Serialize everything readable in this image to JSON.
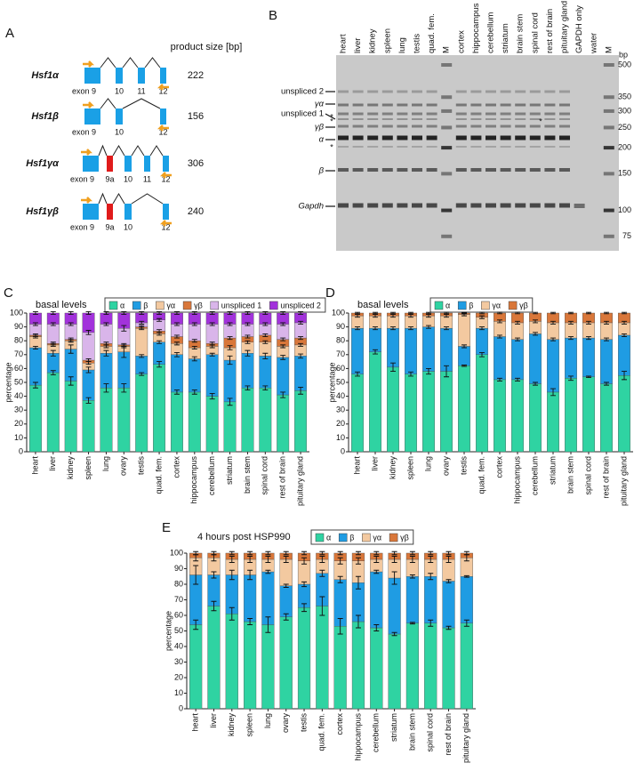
{
  "panel_labels": [
    "A",
    "B",
    "C",
    "D",
    "E"
  ],
  "gene_diagram": {
    "header": "product size [bp]",
    "isoforms": [
      {
        "name": "Hsf1α",
        "exons": [
          "exon 9",
          "10",
          "11",
          "12"
        ],
        "size": 222
      },
      {
        "name": "Hsf1β",
        "exons": [
          "exon 9",
          "10",
          "12"
        ],
        "size": 156
      },
      {
        "name": "Hsf1γα",
        "exons": [
          "exon 9",
          "9a",
          "10",
          "11",
          "12"
        ],
        "size": 306
      },
      {
        "name": "Hsf1γβ",
        "exons": [
          "exon 9",
          "9a",
          "10",
          "12"
        ],
        "size": 240
      }
    ]
  },
  "gel": {
    "lanes": [
      "heart",
      "liver",
      "kidney",
      "spleen",
      "lung",
      "testis",
      "quad. fem.",
      "M",
      "cortex",
      "hippocampus",
      "cerebellum",
      "striatum",
      "brain stem",
      "spinal cord",
      "rest of brain",
      "pituitary gland",
      "GAPDH only",
      "water",
      "M"
    ],
    "band_labels": [
      "unspliced 2",
      "γα",
      "unspliced 1",
      "γβ",
      "α",
      "β",
      "Gapdh"
    ],
    "asterisks": [
      "*",
      "*",
      "*",
      "*"
    ],
    "bp_label": "bp",
    "ladder": [
      500,
      350,
      300,
      250,
      200,
      150,
      100,
      75
    ]
  },
  "chart_data": [
    {
      "type": "bar",
      "stacked": true,
      "title": "basal levels",
      "ylabel": "percentage",
      "categories": [
        "heart",
        "liver",
        "kidney",
        "spleen",
        "lung",
        "ovary",
        "testis",
        "quad. fem.",
        "cortex",
        "hippocampus",
        "cerebellum",
        "striatum",
        "brain stem",
        "spinal cord",
        "rest of brain",
        "pituitary gland"
      ],
      "series": [
        {
          "name": "α",
          "color": "#2fd3a2",
          "values": [
            48,
            57,
            51,
            37,
            46,
            46,
            56,
            63,
            43,
            43,
            40,
            36,
            46,
            46,
            41,
            44
          ],
          "errors": [
            2,
            1.5,
            3,
            2,
            3,
            3,
            1,
            2,
            1.5,
            1.5,
            2,
            2.5,
            1.5,
            1.5,
            2,
            2.5
          ]
        },
        {
          "name": "β",
          "color": "#1f9ce3",
          "values": [
            27,
            14,
            23,
            22,
            25,
            26,
            13,
            16,
            27,
            24,
            30,
            30,
            25,
            23,
            27,
            25
          ],
          "errors": [
            1,
            2,
            3,
            2,
            2,
            4,
            1,
            1,
            1.5,
            1.5,
            1,
            3,
            2,
            2,
            1.5,
            1.5
          ]
        },
        {
          "name": "γα",
          "color": "#f3c9a0",
          "values": [
            8,
            6,
            6,
            5,
            5,
            4,
            20,
            6,
            8,
            8,
            6,
            9,
            8,
            10,
            8,
            8
          ],
          "errors": [
            1,
            1,
            1,
            1,
            1,
            1,
            1,
            1,
            1,
            1,
            1,
            1.5,
            1,
            1,
            1,
            1
          ]
        },
        {
          "name": "γβ",
          "color": "#d9773a",
          "values": [
            1,
            1,
            1,
            2,
            2,
            1,
            1,
            2,
            5,
            5,
            2,
            7,
            4,
            5,
            5,
            5
          ],
          "errors": [
            1,
            1,
            1,
            1,
            1,
            1,
            1,
            1,
            1,
            1,
            1,
            1,
            1,
            1,
            1,
            1
          ]
        },
        {
          "name": "unspliced 1",
          "color": "#d9b5ea",
          "values": [
            8,
            14,
            11,
            20,
            14,
            12,
            3,
            8,
            9,
            12,
            14,
            10,
            9,
            8,
            11,
            11
          ],
          "errors": [
            1,
            1,
            1,
            1.5,
            1,
            2,
            1,
            1,
            1,
            1,
            1,
            1,
            1,
            1,
            1,
            1
          ]
        },
        {
          "name": "unspliced 2",
          "color": "#a232db",
          "values": [
            8,
            8,
            8,
            14,
            8,
            11,
            7,
            5,
            8,
            8,
            8,
            8,
            8,
            8,
            8,
            7
          ],
          "errors": [
            1,
            1,
            1,
            1,
            1,
            1,
            1,
            1,
            1,
            1,
            1,
            1,
            1,
            1,
            1,
            1
          ]
        }
      ],
      "ylim": [
        0,
        100
      ],
      "yticks": [
        0,
        10,
        20,
        30,
        40,
        50,
        60,
        70,
        80,
        90,
        100
      ],
      "legend": "top"
    },
    {
      "type": "bar",
      "stacked": true,
      "title": "basal levels",
      "ylabel": "percentage",
      "categories": [
        "heart",
        "liver",
        "kidney",
        "spleen",
        "lung",
        "ovary",
        "testis",
        "quad. fem.",
        "cortex",
        "hippocampus",
        "cerebellum",
        "striatum",
        "brain stem",
        "spinal cord",
        "rest of brain",
        "pituitary gland"
      ],
      "series": [
        {
          "name": "α",
          "color": "#2fd3a2",
          "values": [
            56,
            72,
            61,
            56,
            58,
            58,
            62,
            70,
            52,
            52,
            49,
            43,
            53,
            54,
            49,
            55
          ],
          "errors": [
            1.5,
            1.5,
            3,
            1.5,
            2,
            4,
            0.5,
            1.5,
            1,
            1,
            1,
            2.5,
            1.5,
            0.5,
            1,
            3
          ]
        },
        {
          "name": "β",
          "color": "#1f9ce3",
          "values": [
            33,
            17,
            28,
            33,
            32,
            31,
            14,
            19,
            31,
            29,
            36,
            38,
            29,
            28,
            32,
            29
          ],
          "errors": [
            1,
            1,
            1,
            1,
            1,
            1,
            1,
            1,
            1,
            1,
            1,
            1,
            1,
            1,
            1,
            1
          ]
        },
        {
          "name": "γα",
          "color": "#f3c9a0",
          "values": [
            9,
            9,
            9,
            9,
            8,
            9,
            23,
            8,
            11,
            12,
            9,
            12,
            11,
            11,
            12,
            9
          ],
          "errors": [
            1,
            1,
            1,
            1,
            1,
            1,
            1,
            1,
            1,
            1,
            1,
            1,
            1,
            1,
            1,
            1
          ]
        },
        {
          "name": "γβ",
          "color": "#d9773a",
          "values": [
            2,
            2,
            2,
            2,
            2,
            2,
            1,
            3,
            6,
            7,
            6,
            7,
            7,
            7,
            7,
            7
          ],
          "errors": [
            0.5,
            0.5,
            0.5,
            0.5,
            0.5,
            0.5,
            0.5,
            0.5,
            0.5,
            0.5,
            0.5,
            0.5,
            0.5,
            0.5,
            0.5,
            0.5
          ]
        }
      ],
      "ylim": [
        0,
        100
      ],
      "yticks": [
        0,
        10,
        20,
        30,
        40,
        50,
        60,
        70,
        80,
        90,
        100
      ],
      "legend": "top"
    },
    {
      "type": "bar",
      "stacked": true,
      "title": "4 hours post HSP990",
      "ylabel": "percentage",
      "categories": [
        "heart",
        "liver",
        "kidney",
        "spleen",
        "lung",
        "ovary",
        "testis",
        "quad. fem.",
        "cortex",
        "hippocampus",
        "cerebellum",
        "striatum",
        "brain stem",
        "spinal cord",
        "rest of brain",
        "pituitary gland"
      ],
      "series": [
        {
          "name": "α",
          "color": "#2fd3a2",
          "values": [
            54,
            66,
            61,
            56,
            54,
            59,
            65,
            66,
            53,
            56,
            52,
            48,
            55,
            55,
            52,
            55
          ],
          "errors": [
            3,
            3,
            4,
            2,
            5,
            2,
            2.5,
            6,
            5,
            4,
            2,
            1,
            0.5,
            2,
            1,
            2
          ]
        },
        {
          "name": "β",
          "color": "#1f9ce3",
          "values": [
            32,
            20,
            25,
            30,
            34,
            20,
            15,
            21,
            30,
            25,
            36,
            36,
            30,
            30,
            30,
            30
          ],
          "errors": [
            6,
            2,
            3,
            3,
            1,
            1,
            1.5,
            2,
            2,
            4,
            1,
            4,
            1,
            2,
            1,
            0.5
          ]
        },
        {
          "name": "γα",
          "color": "#f3c9a0",
          "values": [
            11,
            11,
            10,
            10,
            8,
            17,
            15,
            9,
            12,
            14,
            8,
            12,
            11,
            11,
            14,
            12
          ],
          "errors": [
            2,
            2,
            2,
            2,
            2,
            2,
            2,
            2,
            2,
            2,
            2,
            2,
            2,
            2,
            2,
            2
          ]
        },
        {
          "name": "γβ",
          "color": "#d9773a",
          "values": [
            3,
            3,
            4,
            4,
            4,
            4,
            5,
            4,
            5,
            5,
            4,
            4,
            4,
            4,
            4,
            3
          ],
          "errors": [
            1,
            1,
            1,
            1,
            1,
            1,
            1,
            1,
            1,
            1,
            1,
            1,
            1,
            1,
            1,
            1
          ]
        }
      ],
      "ylim": [
        0,
        100
      ],
      "yticks": [
        0,
        10,
        20,
        30,
        40,
        50,
        60,
        70,
        80,
        90,
        100
      ],
      "legend": "top"
    }
  ]
}
